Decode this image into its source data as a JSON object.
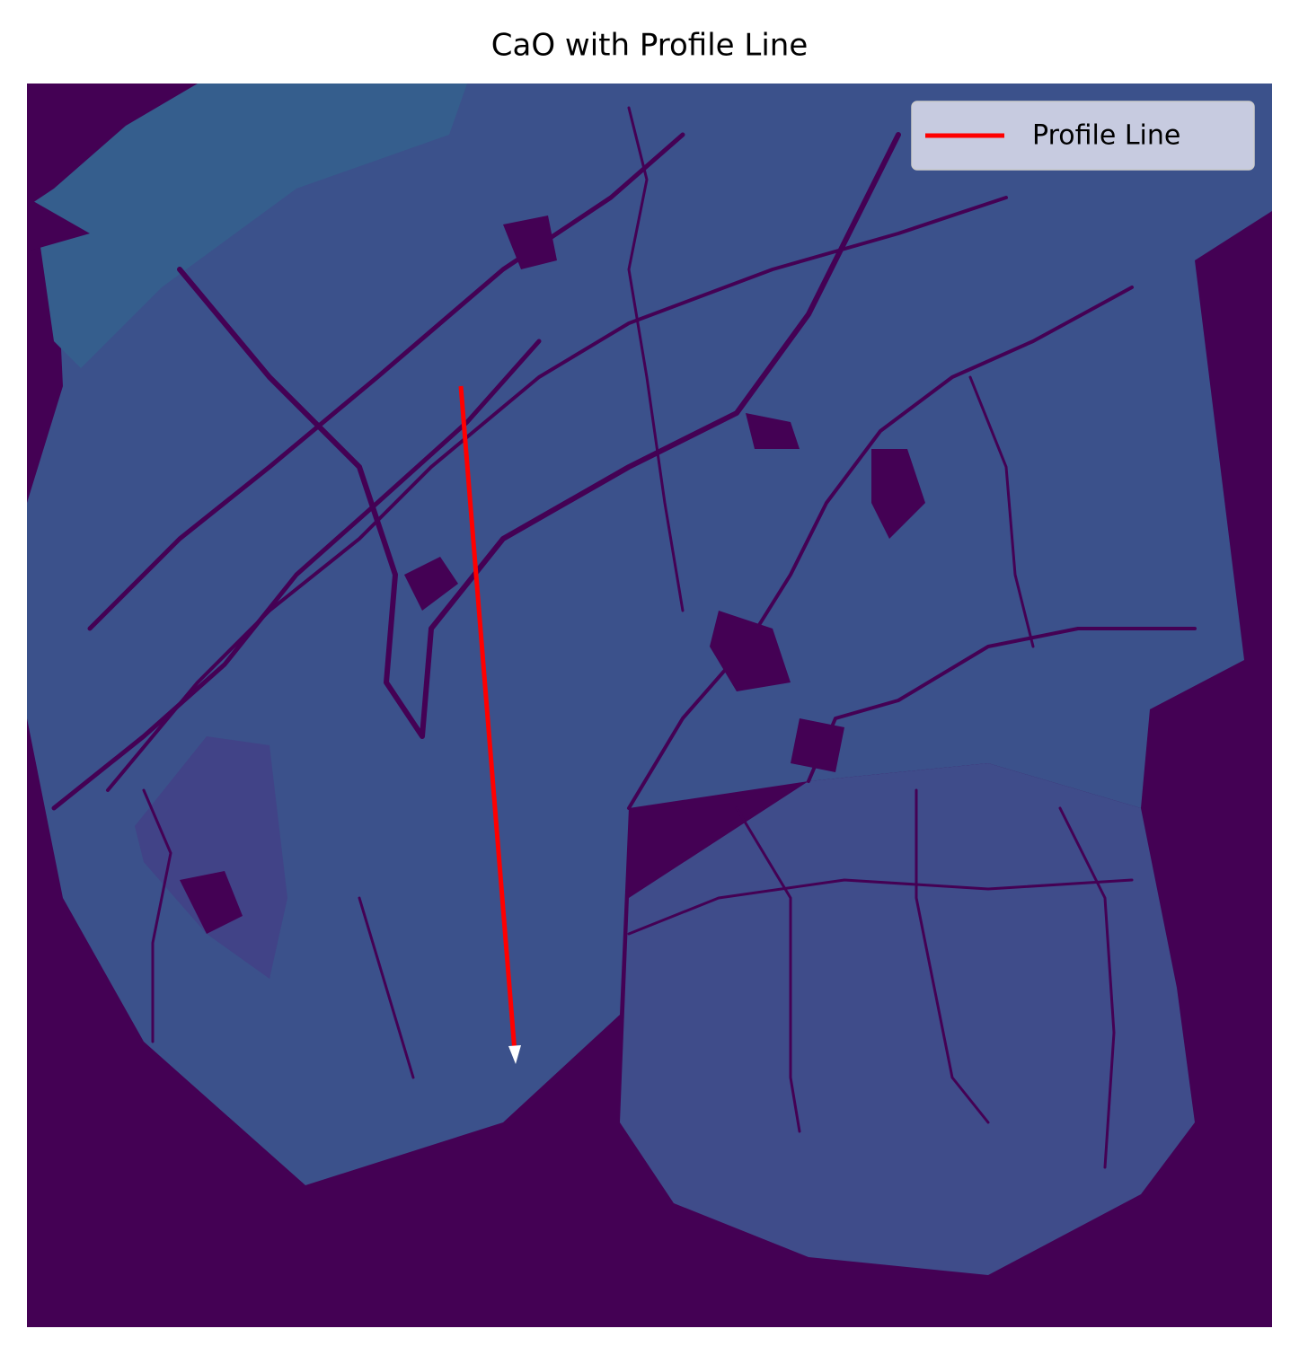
{
  "chart_data": {
    "type": "image",
    "title": "CaO with Profile Line",
    "series": [
      {
        "name": "Profile Line",
        "color": "#ff0000"
      }
    ],
    "legend": "upper right"
  }
}
